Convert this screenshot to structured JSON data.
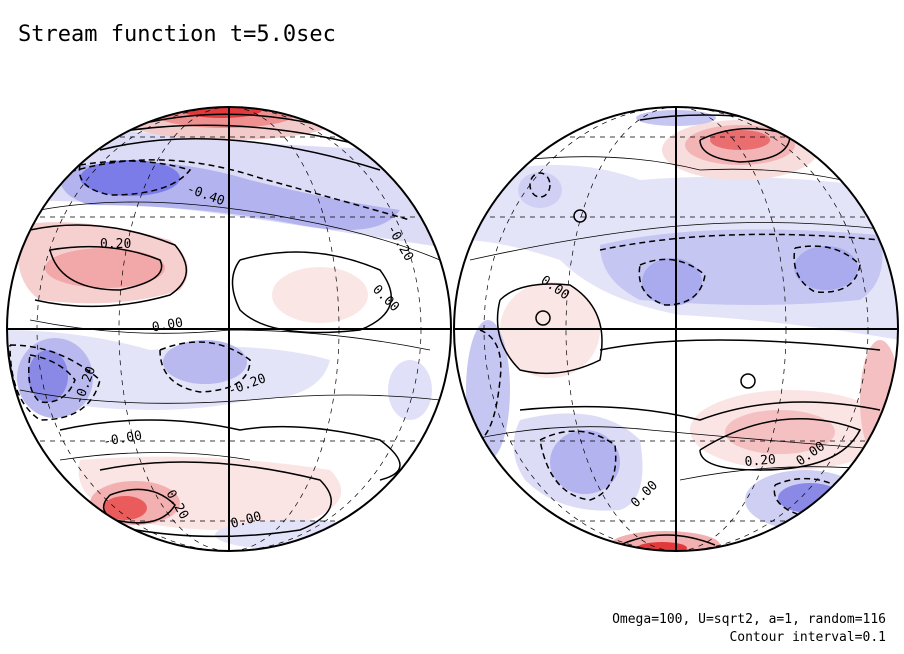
{
  "title": "Stream function t=5.0sec",
  "footer": {
    "params": "Omega=100, U=sqrt2, a=1, random=116",
    "contour_interval": "Contour interval=0.1"
  },
  "colors": {
    "positive": "#e8383b",
    "negative": "#5a5ae8",
    "outline": "#000000"
  },
  "hemispheres": [
    {
      "contour_labels": [
        "-0.40",
        "0.20",
        "-0.20",
        "0.00",
        "-0.00",
        "-0.20",
        "-0.20",
        "-0.00",
        "0.20",
        "0.00"
      ]
    },
    {
      "contour_labels": [
        "0.00",
        "0.20",
        "0.00",
        "0.00"
      ]
    }
  ]
}
